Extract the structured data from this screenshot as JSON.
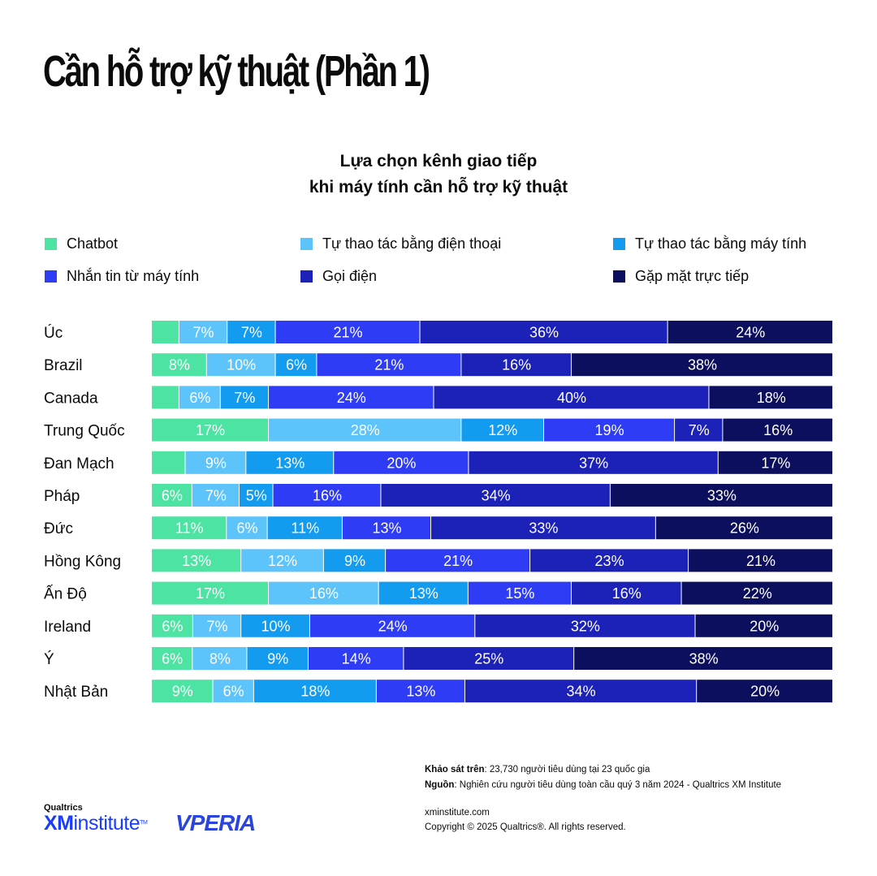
{
  "page": {
    "title": "Cần hỗ trợ kỹ thuật (Phần 1)"
  },
  "chart_data": {
    "type": "bar",
    "orientation": "horizontal",
    "stacked": true,
    "title_lines": [
      "Lựa chọn kênh giao tiếp",
      "khi máy tính cần hỗ trợ kỹ thuật"
    ],
    "legend_placement": "top",
    "grid": false,
    "xlim": [
      0,
      100
    ],
    "categories": [
      "Úc",
      "Brazil",
      "Canada",
      "Trung Quốc",
      "Đan Mạch",
      "Pháp",
      "Đức",
      "Hồng Kông",
      "Ấn Độ",
      "Ireland",
      "Ý",
      "Nhật Bản"
    ],
    "series": [
      {
        "name": "Chatbot",
        "color": "#4de3a3",
        "values": [
          4,
          8,
          4,
          17,
          5,
          6,
          11,
          13,
          17,
          6,
          6,
          9
        ],
        "labels": [
          "",
          "8%",
          "",
          "17%",
          "",
          "6%",
          "11%",
          "13%",
          "17%",
          "6%",
          "6%",
          "9%"
        ]
      },
      {
        "name": "Tự thao tác bằng điện thoại",
        "color": "#5cc3fb",
        "values": [
          7,
          10,
          6,
          28,
          9,
          7,
          6,
          12,
          16,
          7,
          8,
          6
        ],
        "labels": [
          "7%",
          "10%",
          "6%",
          "28%",
          "9%",
          "7%",
          "6%",
          "12%",
          "16%",
          "7%",
          "8%",
          "6%"
        ]
      },
      {
        "name": "Tự thao tác bằng máy tính",
        "color": "#139bf0",
        "values": [
          7,
          6,
          7,
          12,
          13,
          5,
          11,
          9,
          13,
          10,
          9,
          18
        ],
        "labels": [
          "7%",
          "6%",
          "7%",
          "12%",
          "13%",
          "5%",
          "11%",
          "9%",
          "13%",
          "10%",
          "9%",
          "18%"
        ]
      },
      {
        "name": "Nhắn tin từ máy tính",
        "color": "#2f3cf5",
        "values": [
          21,
          21,
          24,
          19,
          20,
          16,
          13,
          21,
          15,
          24,
          14,
          13
        ],
        "labels": [
          "21%",
          "21%",
          "24%",
          "19%",
          "20%",
          "16%",
          "13%",
          "21%",
          "15%",
          "24%",
          "14%",
          "13%"
        ]
      },
      {
        "name": "Gọi điện",
        "color": "#1c22b8",
        "values": [
          36,
          16,
          40,
          7,
          37,
          34,
          33,
          23,
          16,
          32,
          25,
          34
        ],
        "labels": [
          "36%",
          "16%",
          "40%",
          "7%",
          "37%",
          "34%",
          "33%",
          "23%",
          "16%",
          "32%",
          "25%",
          "34%"
        ]
      },
      {
        "name": "Gặp mặt trực tiếp",
        "color": "#0c0f5e",
        "values": [
          24,
          38,
          18,
          16,
          17,
          33,
          26,
          21,
          22,
          20,
          38,
          20
        ],
        "labels": [
          "24%",
          "38%",
          "18%",
          "16%",
          "17%",
          "33%",
          "26%",
          "21%",
          "22%",
          "20%",
          "38%",
          "20%"
        ]
      }
    ]
  },
  "footer": {
    "survey_label": "Khảo sát trên",
    "survey_text": ": 23,730 người tiêu dùng tại 23 quốc gia",
    "source_label": "Nguồn",
    "source_text": ": Nghiên cứu người tiêu dùng toàn cầu quý 3 năm 2024 - Qualtrics XM Institute",
    "website": "xminstitute.com",
    "copyright": "Copyright © 2025 Qualtrics®. All rights reserved."
  },
  "logos": {
    "qualtrics_small": "Qualtrics",
    "xm": "XM",
    "institute": "institute",
    "tm": "TM",
    "vperia": "VPERIA"
  }
}
